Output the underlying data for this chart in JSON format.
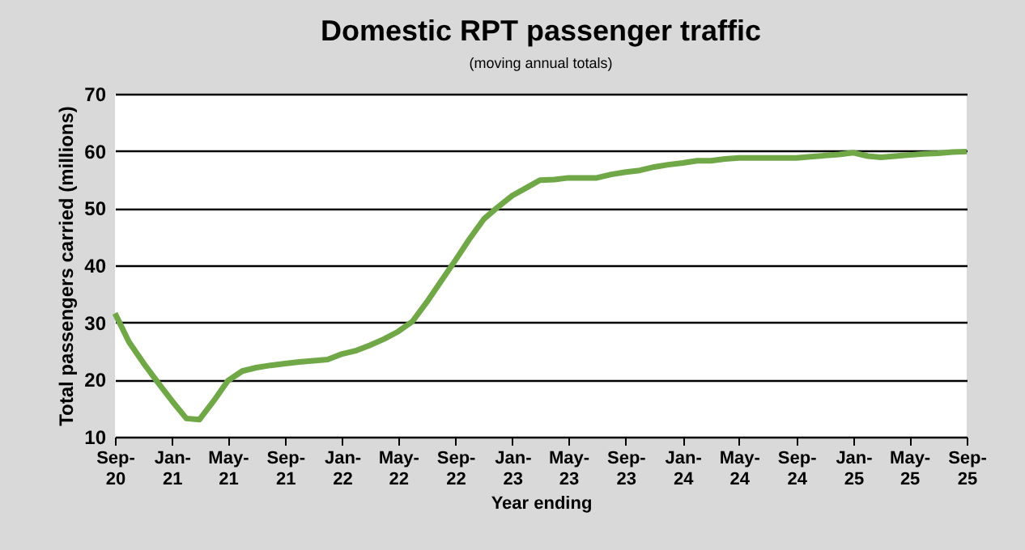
{
  "chart_data": {
    "type": "line",
    "title": "Domestic RPT passenger traffic",
    "subtitle": "(moving annual totals)",
    "xlabel": "Year ending",
    "ylabel": "Total passengers carried (millions)",
    "x": [
      "2020-09",
      "2020-10",
      "2020-11",
      "2020-12",
      "2021-01",
      "2021-02",
      "2021-03",
      "2021-04",
      "2021-05",
      "2021-06",
      "2021-07",
      "2021-08",
      "2021-09",
      "2021-10",
      "2021-11",
      "2021-12",
      "2022-01",
      "2022-02",
      "2022-03",
      "2022-04",
      "2022-05",
      "2022-06",
      "2022-07",
      "2022-08",
      "2022-09",
      "2022-10",
      "2022-11",
      "2022-12",
      "2023-01",
      "2023-02",
      "2023-03",
      "2023-04",
      "2023-05",
      "2023-06",
      "2023-07",
      "2023-08",
      "2023-09",
      "2023-10",
      "2023-11",
      "2023-12",
      "2024-01",
      "2024-02",
      "2024-03",
      "2024-04",
      "2024-05",
      "2024-06",
      "2024-07",
      "2024-08",
      "2024-09",
      "2024-10",
      "2024-11",
      "2024-12",
      "2025-01",
      "2025-02",
      "2025-03",
      "2025-04",
      "2025-05",
      "2025-06",
      "2025-07",
      "2025-08",
      "2025-09"
    ],
    "values": [
      31.6,
      26.6,
      22.9,
      19.6,
      16.3,
      13.2,
      13.0,
      16.3,
      19.8,
      21.5,
      22.1,
      22.5,
      22.8,
      23.1,
      23.3,
      23.5,
      24.5,
      25.1,
      26.0,
      27.1,
      28.4,
      30.2,
      33.5,
      37.2,
      40.9,
      44.6,
      48.1,
      50.2,
      52.2,
      53.6,
      54.9,
      55.0,
      55.3,
      55.3,
      55.3,
      55.9,
      56.3,
      56.6,
      57.2,
      57.6,
      57.9,
      58.3,
      58.3,
      58.6,
      58.8,
      58.8,
      58.8,
      58.8,
      58.8,
      59.0,
      59.2,
      59.4,
      59.7,
      59.1,
      58.9,
      59.1,
      59.3,
      59.5,
      59.6,
      59.8,
      59.9
    ],
    "color": "#70a848",
    "xlim": [
      "2020-09",
      "2025-09"
    ],
    "xticks": [
      {
        "value": "2020-09",
        "label": "Sep-20"
      },
      {
        "value": "2021-01",
        "label": "Jan-21"
      },
      {
        "value": "2021-05",
        "label": "May-21"
      },
      {
        "value": "2021-09",
        "label": "Sep-21"
      },
      {
        "value": "2022-01",
        "label": "Jan-22"
      },
      {
        "value": "2022-05",
        "label": "May-22"
      },
      {
        "value": "2022-09",
        "label": "Sep-22"
      },
      {
        "value": "2023-01",
        "label": "Jan-23"
      },
      {
        "value": "2023-05",
        "label": "May-23"
      },
      {
        "value": "2023-09",
        "label": "Sep-23"
      },
      {
        "value": "2024-01",
        "label": "Jan-24"
      },
      {
        "value": "2024-05",
        "label": "May-24"
      },
      {
        "value": "2024-09",
        "label": "Sep-24"
      },
      {
        "value": "2025-01",
        "label": "Jan-25"
      },
      {
        "value": "2025-05",
        "label": "May-25"
      },
      {
        "value": "2025-09",
        "label": "Sep-25"
      }
    ],
    "ylim": [
      10,
      70
    ],
    "yticks": [
      10,
      20,
      30,
      40,
      50,
      60,
      70
    ],
    "grid": "y",
    "legend": false,
    "marker": "none",
    "line_style": "solid"
  }
}
